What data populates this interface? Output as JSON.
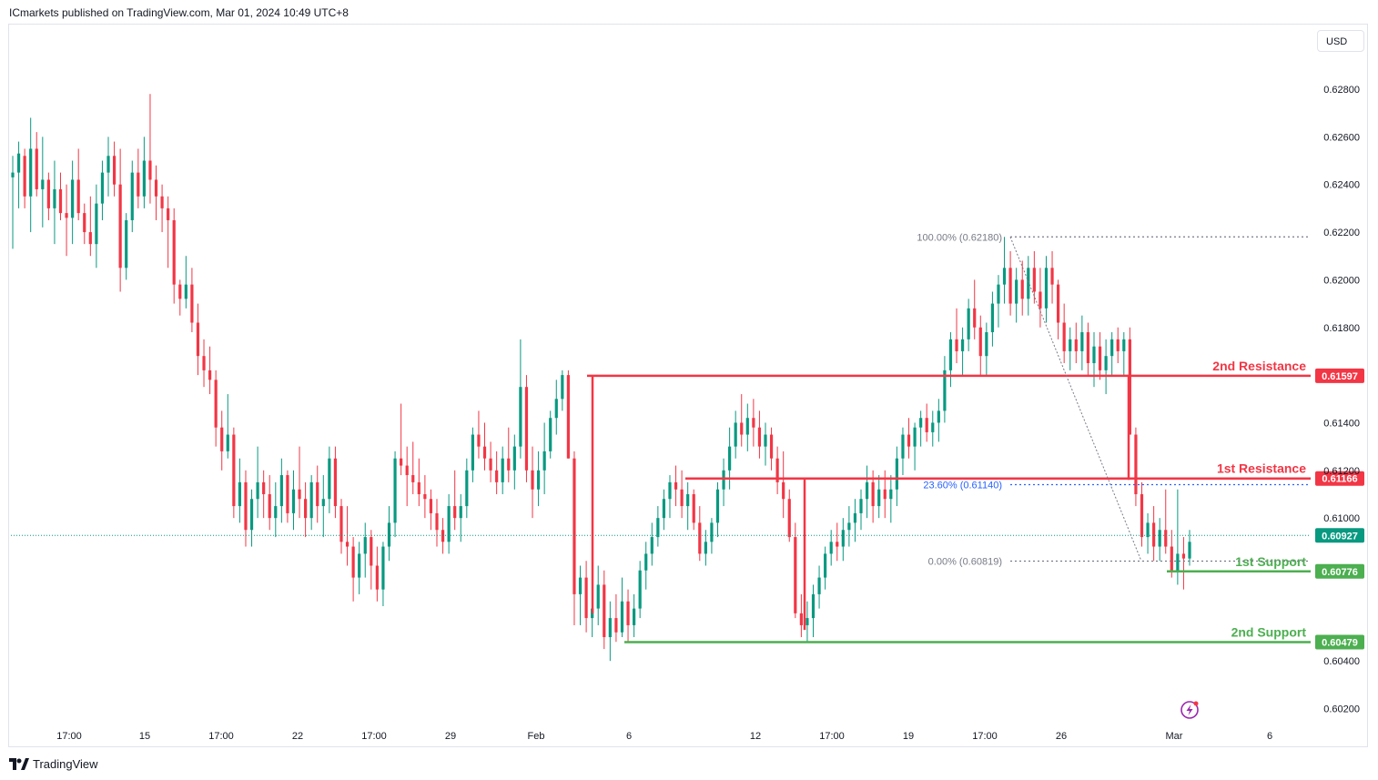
{
  "header": {
    "published": "ICmarkets published on TradingView.com, Mar 01, 2024 10:49 UTC+8"
  },
  "toolbar": {
    "currency_label": "USD"
  },
  "footer": {
    "brand": "TradingView"
  },
  "icons": {
    "logo": "tradingview-logo-icon",
    "flash": "lightning-icon"
  },
  "colors": {
    "bull": "#089981",
    "bear": "#f23645",
    "resistance": "#f23645",
    "support": "#4caf50",
    "fib": "#2962ff",
    "price_line": "#089981"
  },
  "chart_data": {
    "type": "candlestick",
    "symbol_hint": "AUDUSD",
    "y_axis": {
      "ticks": [
        "0.62800",
        "0.62600",
        "0.62400",
        "0.62200",
        "0.62000",
        "0.61800",
        "0.61400",
        "0.61200",
        "0.61000",
        "0.60400",
        "0.60200"
      ],
      "range": [
        0.601,
        0.6295
      ]
    },
    "x_axis": {
      "ticks": [
        "17:00",
        "15",
        "17:00",
        "22",
        "17:00",
        "29",
        "Feb",
        "6",
        "12",
        "17:00",
        "19",
        "17:00",
        "26",
        "Mar",
        "6"
      ]
    },
    "levels": [
      {
        "name": "2nd Resistance",
        "value": "0.61597",
        "type": "resistance"
      },
      {
        "name": "1st Resistance",
        "value": "0.61166",
        "type": "resistance"
      },
      {
        "name": "1st Support",
        "value": "0.60776",
        "type": "support"
      },
      {
        "name": "2nd Support",
        "value": "0.60479",
        "type": "support"
      }
    ],
    "current_price": "0.60927",
    "fibonacci": [
      {
        "label": "100.00% (0.62180)",
        "value": 0.6218
      },
      {
        "label": "23.60% (0.61140)",
        "value": 0.6114
      },
      {
        "label": "0.00% (0.60819)",
        "value": 0.60819
      }
    ],
    "candles": [
      [
        0.6243,
        0.6252,
        0.6213,
        0.6245
      ],
      [
        0.6245,
        0.6258,
        0.623,
        0.6253
      ],
      [
        0.6252,
        0.6255,
        0.623,
        0.6235
      ],
      [
        0.6235,
        0.6268,
        0.622,
        0.6255
      ],
      [
        0.6255,
        0.6262,
        0.6235,
        0.6238
      ],
      [
        0.6238,
        0.626,
        0.6222,
        0.6242
      ],
      [
        0.6242,
        0.6245,
        0.6225,
        0.623
      ],
      [
        0.623,
        0.625,
        0.6215,
        0.6238
      ],
      [
        0.6238,
        0.6245,
        0.6225,
        0.6228
      ],
      [
        0.6228,
        0.624,
        0.621,
        0.6226
      ],
      [
        0.6226,
        0.625,
        0.6215,
        0.6242
      ],
      [
        0.6242,
        0.6255,
        0.6225,
        0.6228
      ],
      [
        0.6228,
        0.6232,
        0.6215,
        0.622
      ],
      [
        0.622,
        0.6235,
        0.621,
        0.6215
      ],
      [
        0.6215,
        0.624,
        0.6205,
        0.6232
      ],
      [
        0.6232,
        0.625,
        0.6225,
        0.6245
      ],
      [
        0.6245,
        0.626,
        0.6235,
        0.6252
      ],
      [
        0.6252,
        0.6258,
        0.6235,
        0.624
      ],
      [
        0.624,
        0.6255,
        0.6195,
        0.6205
      ],
      [
        0.6205,
        0.6228,
        0.62,
        0.6225
      ],
      [
        0.6225,
        0.625,
        0.622,
        0.6245
      ],
      [
        0.6245,
        0.6255,
        0.623,
        0.6235
      ],
      [
        0.6235,
        0.626,
        0.623,
        0.625
      ],
      [
        0.625,
        0.6278,
        0.6232,
        0.6242
      ],
      [
        0.6242,
        0.6248,
        0.6225,
        0.6235
      ],
      [
        0.6235,
        0.624,
        0.622,
        0.623
      ],
      [
        0.623,
        0.6235,
        0.6205,
        0.6225
      ],
      [
        0.6225,
        0.623,
        0.619,
        0.6198
      ],
      [
        0.6198,
        0.62,
        0.6185,
        0.6192
      ],
      [
        0.6192,
        0.621,
        0.6188,
        0.6198
      ],
      [
        0.6198,
        0.6205,
        0.6178,
        0.6182
      ],
      [
        0.6182,
        0.619,
        0.616,
        0.6168
      ],
      [
        0.6168,
        0.6175,
        0.6155,
        0.6162
      ],
      [
        0.6162,
        0.6172,
        0.6152,
        0.6158
      ],
      [
        0.6158,
        0.6162,
        0.613,
        0.6138
      ],
      [
        0.6138,
        0.6145,
        0.612,
        0.6128
      ],
      [
        0.6128,
        0.6152,
        0.6125,
        0.6135
      ],
      [
        0.6135,
        0.6138,
        0.61,
        0.6105
      ],
      [
        0.6105,
        0.6125,
        0.6098,
        0.6115
      ],
      [
        0.6115,
        0.612,
        0.6088,
        0.6095
      ],
      [
        0.6095,
        0.6112,
        0.6088,
        0.6108
      ],
      [
        0.6108,
        0.613,
        0.61,
        0.6115
      ],
      [
        0.6115,
        0.612,
        0.61,
        0.611
      ],
      [
        0.611,
        0.6118,
        0.6095,
        0.61
      ],
      [
        0.61,
        0.6115,
        0.6092,
        0.6105
      ],
      [
        0.6105,
        0.6125,
        0.6098,
        0.6118
      ],
      [
        0.6118,
        0.612,
        0.6098,
        0.6102
      ],
      [
        0.6102,
        0.612,
        0.6095,
        0.6112
      ],
      [
        0.6112,
        0.613,
        0.61,
        0.6108
      ],
      [
        0.6108,
        0.6115,
        0.6092,
        0.61
      ],
      [
        0.61,
        0.6118,
        0.6095,
        0.6115
      ],
      [
        0.6115,
        0.6122,
        0.6098,
        0.6105
      ],
      [
        0.6105,
        0.6118,
        0.6092,
        0.6108
      ],
      [
        0.6108,
        0.613,
        0.6102,
        0.6125
      ],
      [
        0.6125,
        0.613,
        0.61,
        0.6105
      ],
      [
        0.6105,
        0.6108,
        0.6085,
        0.609
      ],
      [
        0.609,
        0.6105,
        0.608,
        0.6088
      ],
      [
        0.6088,
        0.6092,
        0.6065,
        0.6075
      ],
      [
        0.6075,
        0.609,
        0.6068,
        0.6085
      ],
      [
        0.6085,
        0.6098,
        0.6075,
        0.6092
      ],
      [
        0.6092,
        0.6095,
        0.607,
        0.608
      ],
      [
        0.608,
        0.6088,
        0.6065,
        0.607
      ],
      [
        0.607,
        0.609,
        0.6063,
        0.6088
      ],
      [
        0.6088,
        0.6105,
        0.6082,
        0.6098
      ],
      [
        0.6098,
        0.6128,
        0.6092,
        0.6125
      ],
      [
        0.6125,
        0.6148,
        0.6118,
        0.6122
      ],
      [
        0.6122,
        0.613,
        0.6105,
        0.6118
      ],
      [
        0.6118,
        0.6132,
        0.611,
        0.6115
      ],
      [
        0.6115,
        0.6125,
        0.6105,
        0.611
      ],
      [
        0.611,
        0.6118,
        0.61,
        0.6108
      ],
      [
        0.6108,
        0.6112,
        0.6095,
        0.6102
      ],
      [
        0.6102,
        0.6108,
        0.6088,
        0.6095
      ],
      [
        0.6095,
        0.61,
        0.6085,
        0.609
      ],
      [
        0.609,
        0.611,
        0.6085,
        0.6105
      ],
      [
        0.6105,
        0.612,
        0.6095,
        0.61
      ],
      [
        0.61,
        0.611,
        0.609,
        0.6105
      ],
      [
        0.6105,
        0.6125,
        0.61,
        0.612
      ],
      [
        0.612,
        0.6138,
        0.6115,
        0.6135
      ],
      [
        0.6135,
        0.6145,
        0.6125,
        0.613
      ],
      [
        0.613,
        0.614,
        0.612,
        0.6125
      ],
      [
        0.6125,
        0.6132,
        0.6115,
        0.612
      ],
      [
        0.612,
        0.6128,
        0.611,
        0.6115
      ],
      [
        0.6115,
        0.613,
        0.611,
        0.6125
      ],
      [
        0.6125,
        0.6138,
        0.6115,
        0.612
      ],
      [
        0.612,
        0.6135,
        0.6112,
        0.613
      ],
      [
        0.613,
        0.6175,
        0.6125,
        0.6155
      ],
      [
        0.6155,
        0.616,
        0.6115,
        0.612
      ],
      [
        0.612,
        0.613,
        0.61,
        0.6112
      ],
      [
        0.6112,
        0.6128,
        0.6105,
        0.612
      ],
      [
        0.612,
        0.614,
        0.611,
        0.6128
      ],
      [
        0.6128,
        0.6145,
        0.6125,
        0.6142
      ],
      [
        0.6142,
        0.6158,
        0.6135,
        0.615
      ],
      [
        0.615,
        0.6162,
        0.6145,
        0.616
      ],
      [
        0.616,
        0.6162,
        0.6125,
        0.6125
      ],
      [
        0.6125,
        0.6128,
        0.6055,
        0.6068
      ],
      [
        0.6068,
        0.608,
        0.6055,
        0.6075
      ],
      [
        0.6075,
        0.6082,
        0.6052,
        0.6058
      ],
      [
        0.6058,
        0.607,
        0.605,
        0.6062
      ],
      [
        0.6062,
        0.608,
        0.6055,
        0.6072
      ],
      [
        0.6072,
        0.6078,
        0.6045,
        0.605
      ],
      [
        0.605,
        0.6065,
        0.604,
        0.6058
      ],
      [
        0.6058,
        0.6068,
        0.6048,
        0.6052
      ],
      [
        0.6052,
        0.6075,
        0.605,
        0.6065
      ],
      [
        0.6065,
        0.607,
        0.6048,
        0.6055
      ],
      [
        0.6055,
        0.6068,
        0.605,
        0.6062
      ],
      [
        0.6062,
        0.6082,
        0.6058,
        0.6078
      ],
      [
        0.6078,
        0.609,
        0.607,
        0.6085
      ],
      [
        0.6085,
        0.6098,
        0.608,
        0.6092
      ],
      [
        0.6092,
        0.6105,
        0.6088,
        0.61
      ],
      [
        0.61,
        0.6112,
        0.6095,
        0.6108
      ],
      [
        0.6108,
        0.6118,
        0.61,
        0.6115
      ],
      [
        0.6115,
        0.6122,
        0.6105,
        0.6112
      ],
      [
        0.6112,
        0.612,
        0.61,
        0.6105
      ],
      [
        0.6105,
        0.6115,
        0.6095,
        0.611
      ],
      [
        0.611,
        0.6112,
        0.6095,
        0.6098
      ],
      [
        0.6098,
        0.6105,
        0.6082,
        0.6085
      ],
      [
        0.6085,
        0.6095,
        0.608,
        0.609
      ],
      [
        0.609,
        0.61,
        0.6085,
        0.6098
      ],
      [
        0.6098,
        0.6115,
        0.6092,
        0.6112
      ],
      [
        0.6112,
        0.6125,
        0.6105,
        0.612
      ],
      [
        0.612,
        0.6138,
        0.6112,
        0.613
      ],
      [
        0.613,
        0.6145,
        0.6125,
        0.614
      ],
      [
        0.614,
        0.6152,
        0.613,
        0.6135
      ],
      [
        0.6135,
        0.6148,
        0.6128,
        0.6142
      ],
      [
        0.6142,
        0.615,
        0.613,
        0.6138
      ],
      [
        0.6138,
        0.6145,
        0.6125,
        0.613
      ],
      [
        0.613,
        0.614,
        0.6122,
        0.6135
      ],
      [
        0.6135,
        0.6138,
        0.612,
        0.6125
      ],
      [
        0.6125,
        0.613,
        0.611,
        0.6115
      ],
      [
        0.6115,
        0.6128,
        0.61,
        0.6108
      ],
      [
        0.6108,
        0.6112,
        0.609,
        0.6092
      ],
      [
        0.6092,
        0.6098,
        0.6058,
        0.606
      ],
      [
        0.606,
        0.6068,
        0.605,
        0.6055
      ],
      [
        0.6055,
        0.6065,
        0.6048,
        0.6058
      ],
      [
        0.6058,
        0.6072,
        0.605,
        0.6068
      ],
      [
        0.6068,
        0.608,
        0.6062,
        0.6075
      ],
      [
        0.6075,
        0.6088,
        0.607,
        0.6085
      ],
      [
        0.6085,
        0.6095,
        0.608,
        0.609
      ],
      [
        0.609,
        0.6098,
        0.6082,
        0.6088
      ],
      [
        0.6088,
        0.61,
        0.6082,
        0.6095
      ],
      [
        0.6095,
        0.6105,
        0.6088,
        0.6098
      ],
      [
        0.6098,
        0.6108,
        0.609,
        0.6102
      ],
      [
        0.6102,
        0.6112,
        0.6095,
        0.6108
      ],
      [
        0.6108,
        0.6122,
        0.61,
        0.6115
      ],
      [
        0.6115,
        0.612,
        0.6098,
        0.6105
      ],
      [
        0.6105,
        0.6118,
        0.61,
        0.6112
      ],
      [
        0.6112,
        0.612,
        0.61,
        0.6108
      ],
      [
        0.6108,
        0.6118,
        0.6098,
        0.6112
      ],
      [
        0.6112,
        0.613,
        0.6105,
        0.6125
      ],
      [
        0.6125,
        0.6138,
        0.6118,
        0.6135
      ],
      [
        0.6135,
        0.6142,
        0.6125,
        0.613
      ],
      [
        0.613,
        0.614,
        0.612,
        0.6138
      ],
      [
        0.6138,
        0.6145,
        0.613,
        0.6142
      ],
      [
        0.6142,
        0.6148,
        0.6132,
        0.6136
      ],
      [
        0.6136,
        0.6145,
        0.613,
        0.614
      ],
      [
        0.614,
        0.615,
        0.6132,
        0.6145
      ],
      [
        0.6145,
        0.6168,
        0.614,
        0.6162
      ],
      [
        0.6162,
        0.6178,
        0.6155,
        0.6175
      ],
      [
        0.6175,
        0.6188,
        0.6165,
        0.617
      ],
      [
        0.617,
        0.618,
        0.616,
        0.6175
      ],
      [
        0.6175,
        0.6192,
        0.617,
        0.6188
      ],
      [
        0.6188,
        0.62,
        0.6175,
        0.618
      ],
      [
        0.618,
        0.6185,
        0.616,
        0.6168
      ],
      [
        0.6168,
        0.6182,
        0.616,
        0.6178
      ],
      [
        0.6178,
        0.6195,
        0.6172,
        0.619
      ],
      [
        0.619,
        0.6202,
        0.618,
        0.6198
      ],
      [
        0.6198,
        0.6218,
        0.619,
        0.6205
      ],
      [
        0.6205,
        0.6212,
        0.6185,
        0.619
      ],
      [
        0.619,
        0.6205,
        0.6182,
        0.62
      ],
      [
        0.62,
        0.6208,
        0.6185,
        0.6192
      ],
      [
        0.6192,
        0.621,
        0.6185,
        0.6205
      ],
      [
        0.6205,
        0.6212,
        0.619,
        0.6195
      ],
      [
        0.6195,
        0.6205,
        0.618,
        0.6188
      ],
      [
        0.6188,
        0.621,
        0.6182,
        0.6205
      ],
      [
        0.6205,
        0.6212,
        0.619,
        0.6198
      ],
      [
        0.6198,
        0.62,
        0.6175,
        0.6182
      ],
      [
        0.6182,
        0.619,
        0.6165,
        0.617
      ],
      [
        0.617,
        0.618,
        0.6162,
        0.6175
      ],
      [
        0.6175,
        0.6182,
        0.6165,
        0.617
      ],
      [
        0.617,
        0.6185,
        0.6162,
        0.6178
      ],
      [
        0.6178,
        0.6182,
        0.616,
        0.6165
      ],
      [
        0.6165,
        0.6178,
        0.6155,
        0.6172
      ],
      [
        0.6172,
        0.6178,
        0.6158,
        0.6162
      ],
      [
        0.6162,
        0.6175,
        0.6152,
        0.6168
      ],
      [
        0.6168,
        0.6178,
        0.616,
        0.6175
      ],
      [
        0.6175,
        0.618,
        0.6165,
        0.617
      ],
      [
        0.617,
        0.6178,
        0.616,
        0.6175
      ],
      [
        0.6175,
        0.618,
        0.6135,
        0.6135
      ],
      [
        0.6135,
        0.6138,
        0.6105,
        0.611
      ],
      [
        0.611,
        0.6115,
        0.6088,
        0.6092
      ],
      [
        0.6092,
        0.6102,
        0.6085,
        0.6098
      ],
      [
        0.6098,
        0.6105,
        0.6082,
        0.6088
      ],
      [
        0.6088,
        0.61,
        0.6082,
        0.6095
      ],
      [
        0.6095,
        0.6112,
        0.6085,
        0.6088
      ],
      [
        0.6088,
        0.6095,
        0.6075,
        0.6078
      ],
      [
        0.6078,
        0.6112,
        0.6072,
        0.6085
      ],
      [
        0.6085,
        0.6092,
        0.607,
        0.6083
      ],
      [
        0.6083,
        0.6095,
        0.608,
        0.609
      ]
    ]
  }
}
